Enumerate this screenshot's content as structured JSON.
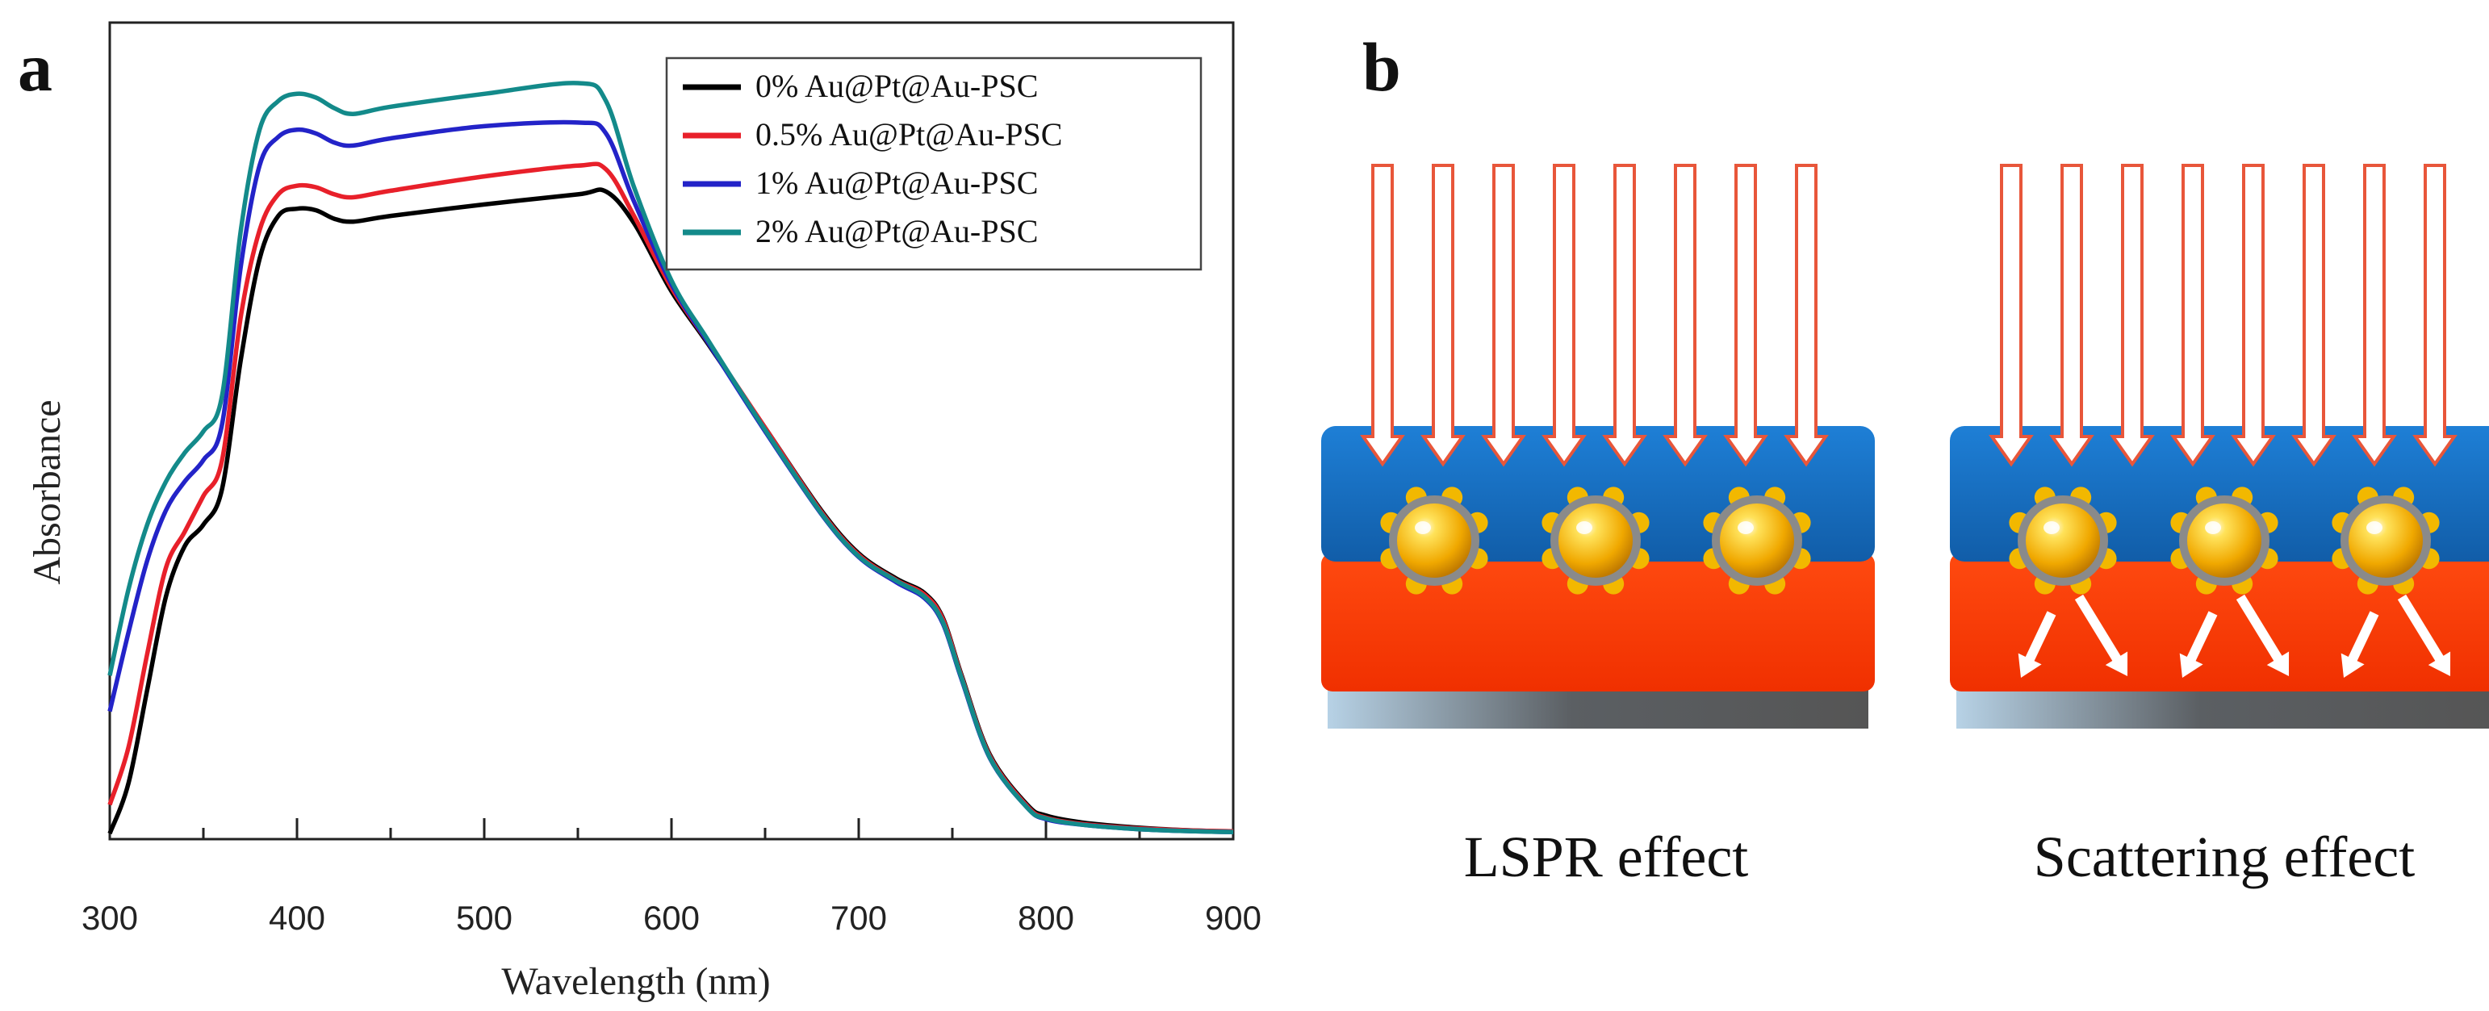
{
  "panel_a": {
    "letter": "a"
  },
  "panel_b": {
    "letter": "b",
    "captions": [
      "LSPR effect",
      "Scattering effect"
    ]
  },
  "colors": {
    "series": [
      "#000000",
      "#e8202a",
      "#2323c8",
      "#138a8a"
    ],
    "arrow": "#e8563a",
    "top_layer": "#1a6fc0",
    "bottom_layer": "#ff3a00",
    "particle": "#f2b800",
    "shell": "#8a8a8a",
    "substrate": "#5a5a5a"
  },
  "chart_data": {
    "type": "line",
    "title": "",
    "xlabel": "Wavelength (nm)",
    "ylabel": "Absorbance",
    "xlim": [
      300,
      900
    ],
    "ylim": [
      0,
      1
    ],
    "xticks": [
      300,
      400,
      500,
      600,
      700,
      800,
      900
    ],
    "y_ticks_labeled": false,
    "legend_position": "top-right",
    "series": [
      {
        "name": "0% Au@Pt@Au-PSC",
        "x": [
          300,
          310,
          320,
          330,
          340,
          350,
          360,
          370,
          380,
          390,
          400,
          410,
          420,
          430,
          450,
          500,
          550,
          565,
          580,
          600,
          620,
          650,
          680,
          700,
          720,
          735,
          745,
          755,
          770,
          790,
          800,
          820,
          850,
          880,
          900
        ],
        "y": [
          0.0,
          0.07,
          0.2,
          0.33,
          0.4,
          0.43,
          0.48,
          0.66,
          0.8,
          0.86,
          0.87,
          0.868,
          0.856,
          0.852,
          0.86,
          0.876,
          0.89,
          0.894,
          0.85,
          0.755,
          0.68,
          0.565,
          0.45,
          0.39,
          0.355,
          0.335,
          0.3,
          0.22,
          0.11,
          0.04,
          0.025,
          0.015,
          0.008,
          0.004,
          0.003
        ]
      },
      {
        "name": "0.5% Au@Pt@Au-PSC",
        "x": [
          300,
          310,
          320,
          330,
          340,
          350,
          360,
          370,
          380,
          390,
          400,
          410,
          420,
          430,
          450,
          500,
          550,
          565,
          580,
          600,
          620,
          650,
          680,
          700,
          720,
          735,
          745,
          755,
          770,
          790,
          800,
          820,
          850,
          880,
          900
        ],
        "y": [
          0.04,
          0.12,
          0.25,
          0.37,
          0.42,
          0.47,
          0.52,
          0.72,
          0.84,
          0.89,
          0.902,
          0.9,
          0.89,
          0.886,
          0.895,
          0.915,
          0.93,
          0.925,
          0.86,
          0.76,
          0.682,
          0.565,
          0.448,
          0.388,
          0.353,
          0.333,
          0.298,
          0.218,
          0.108,
          0.038,
          0.022,
          0.013,
          0.007,
          0.004,
          0.003
        ]
      },
      {
        "name": "1% Au@Pt@Au-PSC",
        "x": [
          300,
          310,
          320,
          330,
          340,
          350,
          360,
          370,
          380,
          390,
          400,
          410,
          420,
          430,
          450,
          500,
          550,
          565,
          580,
          600,
          620,
          650,
          680,
          700,
          720,
          735,
          745,
          755,
          770,
          790,
          800,
          820,
          850,
          880,
          900
        ],
        "y": [
          0.17,
          0.28,
          0.38,
          0.45,
          0.49,
          0.52,
          0.57,
          0.79,
          0.93,
          0.97,
          0.98,
          0.975,
          0.962,
          0.958,
          0.968,
          0.985,
          0.99,
          0.975,
          0.88,
          0.765,
          0.682,
          0.56,
          0.445,
          0.385,
          0.35,
          0.328,
          0.292,
          0.214,
          0.105,
          0.036,
          0.02,
          0.012,
          0.006,
          0.003,
          0.002
        ]
      },
      {
        "name": "2% Au@Pt@Au-PSC",
        "x": [
          300,
          310,
          320,
          330,
          340,
          350,
          360,
          370,
          380,
          390,
          400,
          410,
          420,
          430,
          450,
          500,
          550,
          565,
          580,
          600,
          620,
          650,
          680,
          700,
          720,
          735,
          745,
          755,
          770,
          790,
          800,
          820,
          850,
          880,
          900
        ],
        "y": [
          0.22,
          0.34,
          0.43,
          0.49,
          0.53,
          0.56,
          0.61,
          0.84,
          0.98,
          1.02,
          1.03,
          1.025,
          1.01,
          1.002,
          1.012,
          1.03,
          1.045,
          1.02,
          0.9,
          0.77,
          0.685,
          0.562,
          0.446,
          0.386,
          0.352,
          0.33,
          0.294,
          0.216,
          0.106,
          0.036,
          0.021,
          0.012,
          0.006,
          0.003,
          0.002
        ]
      }
    ]
  }
}
